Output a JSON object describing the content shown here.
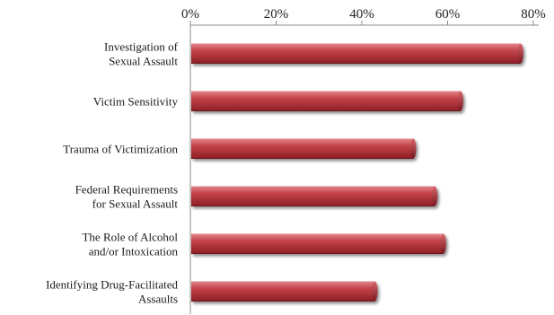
{
  "chart_data": {
    "type": "bar",
    "orientation": "horizontal",
    "categories": [
      [
        "Investigation of",
        "Sexual Assault"
      ],
      [
        "Victim Sensitivity"
      ],
      [
        "Trauma of Victimization"
      ],
      [
        "Federal Requirements",
        "for Sexual Assault"
      ],
      [
        "The Role of Alcohol",
        "and/or Intoxication"
      ],
      [
        "Identifying Drug-Facilitated",
        "Assaults"
      ]
    ],
    "values": [
      77,
      63,
      52,
      57,
      59,
      43
    ],
    "xlim": [
      0,
      80
    ],
    "xticks": [
      0,
      20,
      40,
      60,
      80
    ],
    "tick_labels": [
      "0%",
      "20%",
      "40%",
      "60%",
      "80%"
    ],
    "x_axis_position": "top",
    "grid": false,
    "legend": "none",
    "bar_color": "#b8323a"
  }
}
